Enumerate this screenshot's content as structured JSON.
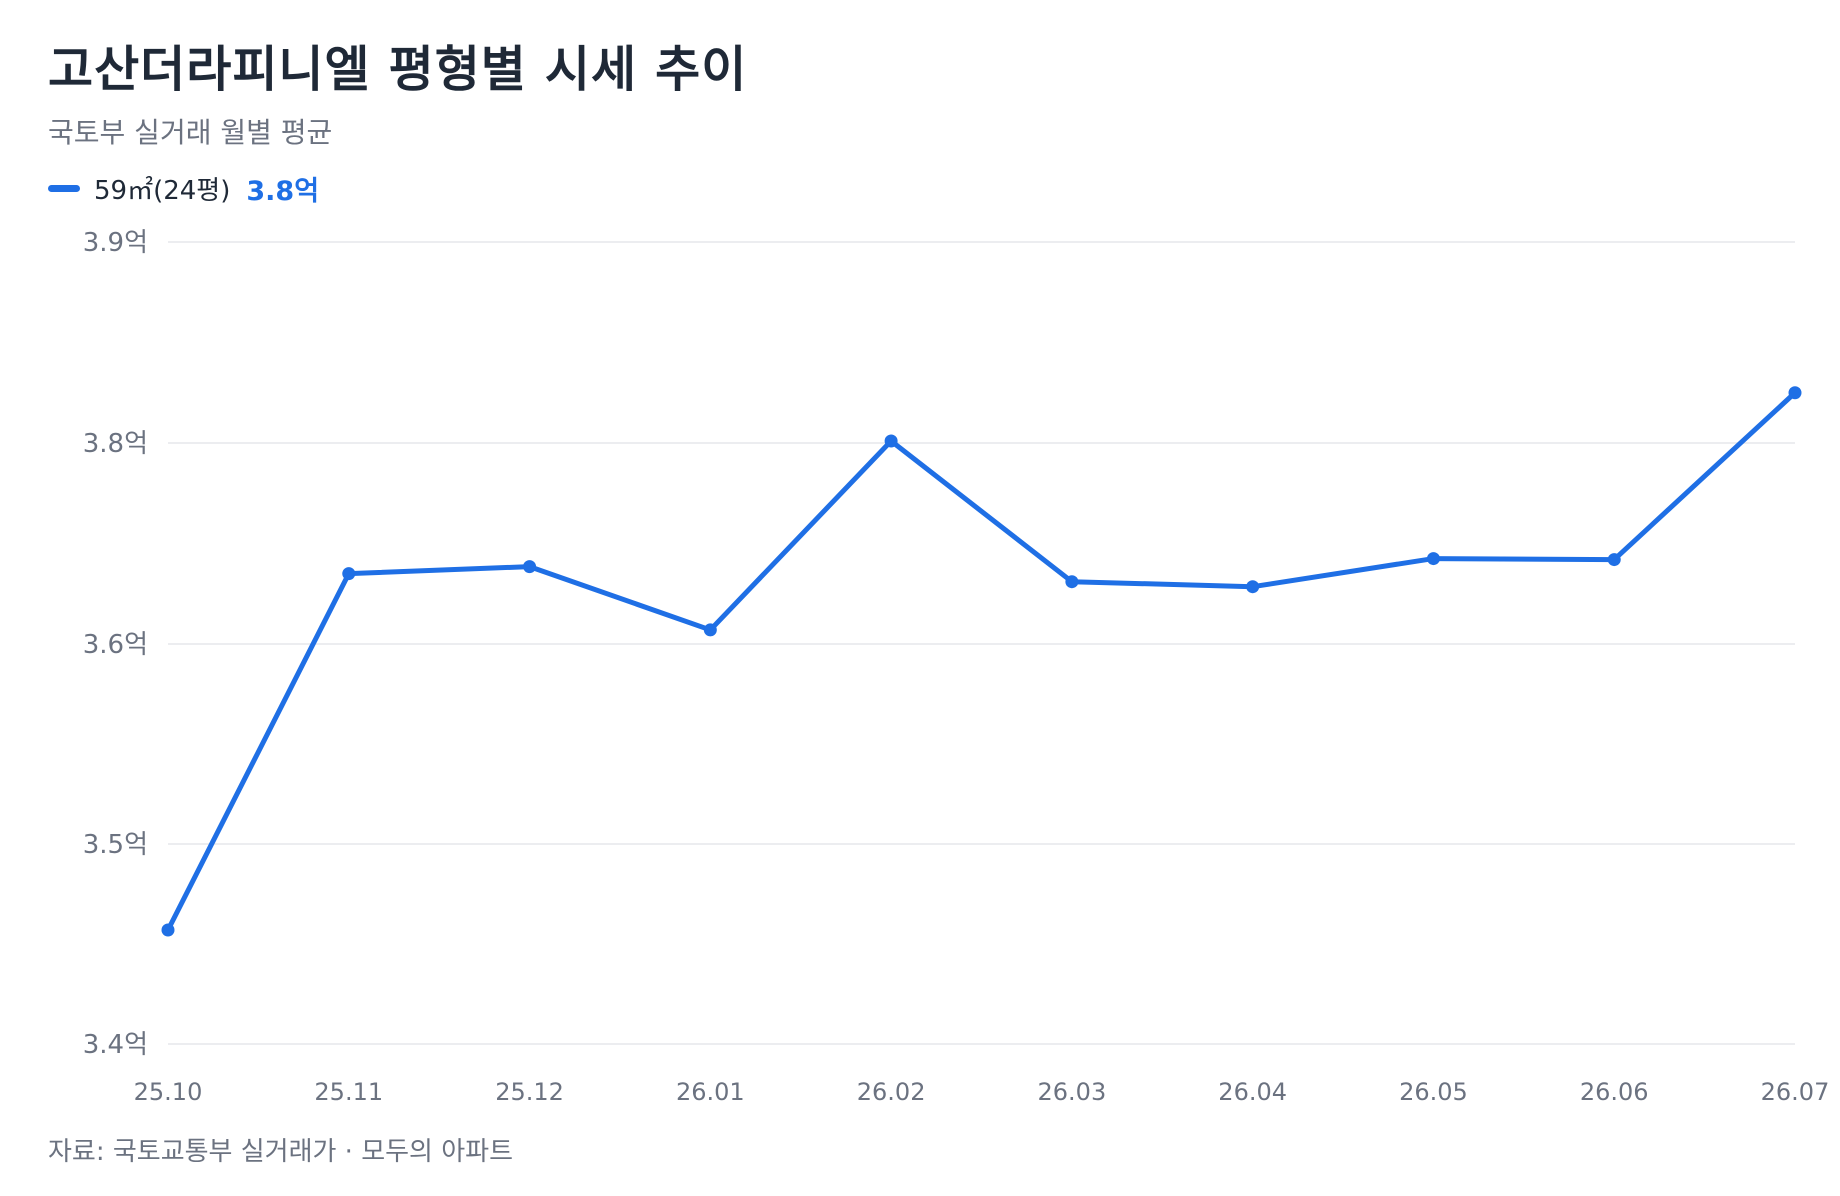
{
  "header": {
    "title": "고산더라피니엘 평형별 시세 추이",
    "subtitle": "국토부 실거래 월별 평균"
  },
  "legend": {
    "label": "59㎡(24평)",
    "value": "3.8억"
  },
  "footer": {
    "source": "자료: 국토교통부 실거래가 · 모두의 아파트"
  },
  "colors": {
    "series": "#1f6fe5",
    "grid": "#e5e7eb",
    "text_muted": "#6b7280"
  },
  "chart_data": {
    "type": "line",
    "title": "고산더라피니엘 평형별 시세 추이",
    "subtitle": "국토부 실거래 월별 평균",
    "categories": [
      "25.10",
      "25.11",
      "25.12",
      "26.01",
      "26.02",
      "26.03",
      "26.04",
      "26.05",
      "26.06",
      "26.07"
    ],
    "yticks": [
      3.4,
      3.5,
      3.6,
      3.8,
      3.9
    ],
    "ytick_labels": [
      "3.4억",
      "3.5억",
      "3.6억",
      "3.8억",
      "3.9억"
    ],
    "series": [
      {
        "name": "59㎡(24평)",
        "values": [
          3.457,
          3.67,
          3.677,
          3.614,
          3.801,
          3.662,
          3.657,
          3.685,
          3.684,
          3.825
        ]
      }
    ],
    "grid": true,
    "legend": "top-left"
  }
}
